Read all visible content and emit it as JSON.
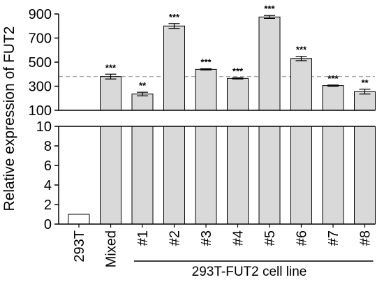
{
  "chart_data": {
    "type": "bar",
    "ylabel": "Relative expression of FUT2",
    "group_label": "293T-FUT2 cell line",
    "categories": [
      "293T",
      "Mixed",
      "#1",
      "#2",
      "#3",
      "#4",
      "#5",
      "#6",
      "#7",
      "#8"
    ],
    "values": [
      1,
      380,
      235,
      800,
      440,
      365,
      875,
      530,
      305,
      255
    ],
    "errors": [
      0,
      20,
      15,
      20,
      5,
      5,
      12,
      18,
      5,
      20
    ],
    "significance": [
      "",
      "***",
      "**",
      "***",
      "***",
      "***",
      "***",
      "***",
      "***",
      "**"
    ],
    "reference_line": 380,
    "y_axis_broken": true,
    "lower_segment": {
      "ylim": [
        0,
        10
      ],
      "ticks": [
        "0",
        "2",
        "4",
        "6",
        "8",
        "10"
      ]
    },
    "upper_segment": {
      "ylim": [
        100,
        900
      ],
      "ticks": [
        "100",
        "300",
        "500",
        "700",
        "900"
      ]
    },
    "colors": {
      "control_bar": "#ffffff",
      "sample_bar": "#d9d9d9",
      "stroke": "#000000",
      "reference_line": "#999999"
    },
    "grid": false
  }
}
